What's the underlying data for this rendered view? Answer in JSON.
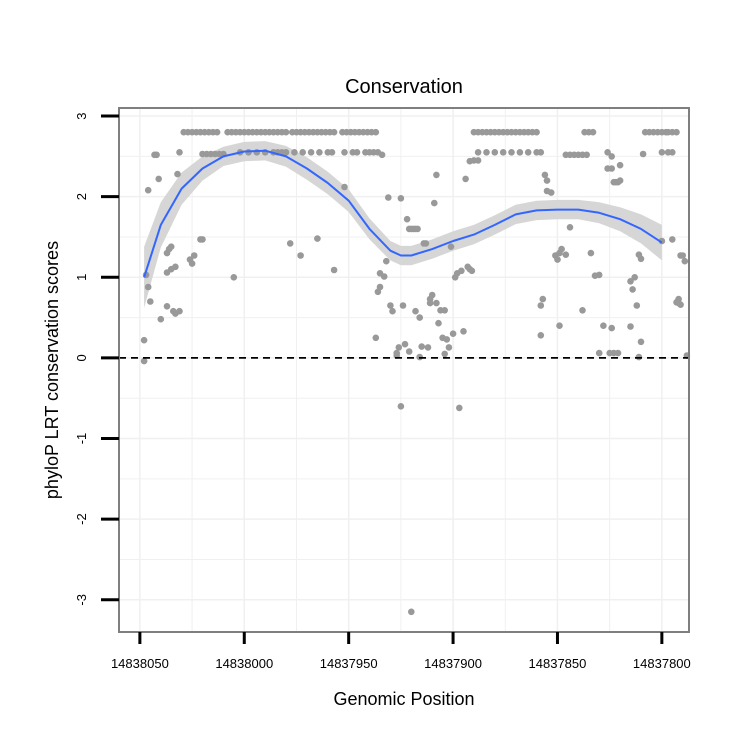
{
  "chart_data": {
    "type": "scatter",
    "title": "Conservation",
    "xlabel": "Genomic Position",
    "ylabel": "phyloP LRT conservation scores",
    "x_reversed": true,
    "xlim": [
      14838060,
      14837787
    ],
    "ylim": [
      -3.4,
      3.1
    ],
    "x_ticks": [
      14838050,
      14838000,
      14837950,
      14837900,
      14837850,
      14837800
    ],
    "x_tick_labels": [
      "14838050",
      "14838000",
      "14837950",
      "14837900",
      "14837850",
      "14837800"
    ],
    "y_ticks": [
      3,
      2,
      1,
      0,
      -1,
      -2,
      -3
    ],
    "y_tick_labels": [
      "3",
      "2",
      "1",
      "0",
      "-1",
      "-2",
      "-3"
    ],
    "grid": true,
    "reference_line": {
      "y": 0,
      "style": "dashed",
      "color": "#000000"
    },
    "colors": {
      "points": "#999999",
      "smooth": "#3366ff",
      "band": "#d4d4d4",
      "frame": "#7f7f7f",
      "grid": "#f0f0f0"
    },
    "points": [
      [
        14838047,
        1.03
      ],
      [
        14838046,
        0.88
      ],
      [
        14838045,
        0.7
      ],
      [
        14838048,
        0.22
      ],
      [
        14838048,
        -0.04
      ],
      [
        14838046,
        2.08
      ],
      [
        14838043,
        2.52
      ],
      [
        14838042,
        2.52
      ],
      [
        14838041,
        2.22
      ],
      [
        14838040,
        0.48
      ],
      [
        14838037,
        1.3
      ],
      [
        14838036,
        1.35
      ],
      [
        14838035,
        1.38
      ],
      [
        14838037,
        1.06
      ],
      [
        14838035,
        1.1
      ],
      [
        14838033,
        1.13
      ],
      [
        14838037,
        0.64
      ],
      [
        14838034,
        0.58
      ],
      [
        14838033,
        0.55
      ],
      [
        14838031,
        0.58
      ],
      [
        14838032,
        2.28
      ],
      [
        14838031,
        2.55
      ],
      [
        14838029,
        2.8
      ],
      [
        14838027,
        2.8
      ],
      [
        14838025,
        2.8
      ],
      [
        14838023,
        2.8
      ],
      [
        14838021,
        2.8
      ],
      [
        14838019,
        2.8
      ],
      [
        14838017,
        2.8
      ],
      [
        14838015,
        2.8
      ],
      [
        14838013,
        2.8
      ],
      [
        14838026,
        1.22
      ],
      [
        14838024,
        1.27
      ],
      [
        14838025,
        1.17
      ],
      [
        14838020,
        2.53
      ],
      [
        14838018,
        2.53
      ],
      [
        14838016,
        2.53
      ],
      [
        14838014,
        2.53
      ],
      [
        14838012,
        2.53
      ],
      [
        14838010,
        2.53
      ],
      [
        14838021,
        1.47
      ],
      [
        14838020,
        1.47
      ],
      [
        14838005,
        1.0
      ],
      [
        14838008,
        2.8
      ],
      [
        14838006,
        2.8
      ],
      [
        14838004,
        2.8
      ],
      [
        14838002,
        2.8
      ],
      [
        14838000,
        2.8
      ],
      [
        14837998,
        2.8
      ],
      [
        14837996,
        2.8
      ],
      [
        14837994,
        2.8
      ],
      [
        14837992,
        2.8
      ],
      [
        14837990,
        2.8
      ],
      [
        14837988,
        2.8
      ],
      [
        14837986,
        2.8
      ],
      [
        14837984,
        2.8
      ],
      [
        14837982,
        2.8
      ],
      [
        14837980,
        2.8
      ],
      [
        14838002,
        2.55
      ],
      [
        14837998,
        2.55
      ],
      [
        14837994,
        2.55
      ],
      [
        14837990,
        2.55
      ],
      [
        14837986,
        2.55
      ],
      [
        14837984,
        2.55
      ],
      [
        14837982,
        2.55
      ],
      [
        14837980,
        2.55
      ],
      [
        14837978,
        1.42
      ],
      [
        14837977,
        2.8
      ],
      [
        14837975,
        2.8
      ],
      [
        14837973,
        2.8
      ],
      [
        14837971,
        2.8
      ],
      [
        14837969,
        2.8
      ],
      [
        14837967,
        2.8
      ],
      [
        14837965,
        2.8
      ],
      [
        14837963,
        2.8
      ],
      [
        14837976,
        2.55
      ],
      [
        14837972,
        2.55
      ],
      [
        14837968,
        2.55
      ],
      [
        14837964,
        2.55
      ],
      [
        14837960,
        2.55
      ],
      [
        14837958,
        2.55
      ],
      [
        14837973,
        1.27
      ],
      [
        14837965,
        1.48
      ],
      [
        14837961,
        2.8
      ],
      [
        14837959,
        2.8
      ],
      [
        14837957,
        2.8
      ],
      [
        14837953,
        2.8
      ],
      [
        14837951,
        2.8
      ],
      [
        14837949,
        2.8
      ],
      [
        14837947,
        2.8
      ],
      [
        14837945,
        2.8
      ],
      [
        14837943,
        2.8
      ],
      [
        14837941,
        2.8
      ],
      [
        14837939,
        2.8
      ],
      [
        14837937,
        2.8
      ],
      [
        14837952,
        2.55
      ],
      [
        14837948,
        2.55
      ],
      [
        14837946,
        2.55
      ],
      [
        14837942,
        2.55
      ],
      [
        14837940,
        2.55
      ],
      [
        14837938,
        2.55
      ],
      [
        14837936,
        2.55
      ],
      [
        14837934,
        2.52
      ],
      [
        14837957,
        1.09
      ],
      [
        14837952,
        2.12
      ],
      [
        14837937,
        0.25
      ],
      [
        14837936,
        0.82
      ],
      [
        14837935,
        0.88
      ],
      [
        14837935,
        1.05
      ],
      [
        14837933,
        1.01
      ],
      [
        14837932,
        1.2
      ],
      [
        14837931,
        1.99
      ],
      [
        14837930,
        0.65
      ],
      [
        14837929,
        0.58
      ],
      [
        14837927,
        0.06
      ],
      [
        14837927,
        0.03
      ],
      [
        14837926,
        0.13
      ],
      [
        14837925,
        -0.6
      ],
      [
        14837925,
        1.98
      ],
      [
        14837924,
        0.65
      ],
      [
        14837923,
        0.17
      ],
      [
        14837922,
        1.72
      ],
      [
        14837921,
        1.6
      ],
      [
        14837920,
        1.6
      ],
      [
        14837919,
        1.6
      ],
      [
        14837918,
        1.6
      ],
      [
        14837917,
        1.6
      ],
      [
        14837921,
        0.08
      ],
      [
        14837920,
        -3.15
      ],
      [
        14837918,
        0.58
      ],
      [
        14837916,
        0.5
      ],
      [
        14837916,
        0.01
      ],
      [
        14837915,
        0.14
      ],
      [
        14837914,
        1.42
      ],
      [
        14837913,
        1.42
      ],
      [
        14837912,
        0.13
      ],
      [
        14837911,
        0.68
      ],
      [
        14837911,
        0.73
      ],
      [
        14837910,
        0.78
      ],
      [
        14837909,
        1.92
      ],
      [
        14837908,
        2.27
      ],
      [
        14837908,
        0.68
      ],
      [
        14837907,
        0.43
      ],
      [
        14837906,
        0.59
      ],
      [
        14837905,
        0.25
      ],
      [
        14837904,
        0.05
      ],
      [
        14837904,
        0.59
      ],
      [
        14837903,
        0.23
      ],
      [
        14837902,
        0.13
      ],
      [
        14837901,
        1.38
      ],
      [
        14837900,
        0.3
      ],
      [
        14837899,
        1.0
      ],
      [
        14837898,
        1.05
      ],
      [
        14837897,
        -0.62
      ],
      [
        14837896,
        1.08
      ],
      [
        14837895,
        0.33
      ],
      [
        14837894,
        2.22
      ],
      [
        14837893,
        1.13
      ],
      [
        14837892,
        1.1
      ],
      [
        14837891,
        1.08
      ],
      [
        14837892,
        2.44
      ],
      [
        14837890,
        2.45
      ],
      [
        14837888,
        2.45
      ],
      [
        14837890,
        2.8
      ],
      [
        14837888,
        2.8
      ],
      [
        14837886,
        2.8
      ],
      [
        14837884,
        2.8
      ],
      [
        14837882,
        2.8
      ],
      [
        14837880,
        2.8
      ],
      [
        14837878,
        2.8
      ],
      [
        14837876,
        2.8
      ],
      [
        14837874,
        2.8
      ],
      [
        14837872,
        2.8
      ],
      [
        14837870,
        2.8
      ],
      [
        14837868,
        2.8
      ],
      [
        14837866,
        2.8
      ],
      [
        14837864,
        2.8
      ],
      [
        14837862,
        2.8
      ],
      [
        14837860,
        2.8
      ],
      [
        14837888,
        2.55
      ],
      [
        14837884,
        2.55
      ],
      [
        14837880,
        2.55
      ],
      [
        14837876,
        2.55
      ],
      [
        14837872,
        2.55
      ],
      [
        14837868,
        2.55
      ],
      [
        14837864,
        2.55
      ],
      [
        14837860,
        2.55
      ],
      [
        14837858,
        2.55
      ],
      [
        14837858,
        0.65
      ],
      [
        14837857,
        0.73
      ],
      [
        14837858,
        0.28
      ],
      [
        14837856,
        2.27
      ],
      [
        14837855,
        2.2
      ],
      [
        14837855,
        2.07
      ],
      [
        14837853,
        2.05
      ],
      [
        14837851,
        1.27
      ],
      [
        14837850,
        1.22
      ],
      [
        14837849,
        1.3
      ],
      [
        14837848,
        1.35
      ],
      [
        14837846,
        1.28
      ],
      [
        14837846,
        2.52
      ],
      [
        14837844,
        2.52
      ],
      [
        14837842,
        2.52
      ],
      [
        14837840,
        2.52
      ],
      [
        14837838,
        2.52
      ],
      [
        14837836,
        2.52
      ],
      [
        14837837,
        2.8
      ],
      [
        14837835,
        2.8
      ],
      [
        14837833,
        2.8
      ],
      [
        14837849,
        0.4
      ],
      [
        14837844,
        1.62
      ],
      [
        14837838,
        0.59
      ],
      [
        14837834,
        1.3
      ],
      [
        14837832,
        1.02
      ],
      [
        14837830,
        1.03
      ],
      [
        14837828,
        0.4
      ],
      [
        14837826,
        2.55
      ],
      [
        14837824,
        2.5
      ],
      [
        14837826,
        2.35
      ],
      [
        14837824,
        2.35
      ],
      [
        14837823,
        2.18
      ],
      [
        14837822,
        2.18
      ],
      [
        14837821,
        2.18
      ],
      [
        14837820,
        2.2
      ],
      [
        14837820,
        2.39
      ],
      [
        14837825,
        0.06
      ],
      [
        14837823,
        0.06
      ],
      [
        14837821,
        0.06
      ],
      [
        14837824,
        0.37
      ],
      [
        14837830,
        0.06
      ],
      [
        14837815,
        0.39
      ],
      [
        14837814,
        0.85
      ],
      [
        14837815,
        0.95
      ],
      [
        14837813,
        1.0
      ],
      [
        14837812,
        0.65
      ],
      [
        14837811,
        1.28
      ],
      [
        14837810,
        1.23
      ],
      [
        14837810,
        0.2
      ],
      [
        14837811,
        0.01
      ],
      [
        14837809,
        2.53
      ],
      [
        14837808,
        2.8
      ],
      [
        14837806,
        2.8
      ],
      [
        14837804,
        2.8
      ],
      [
        14837802,
        2.8
      ],
      [
        14837800,
        2.8
      ],
      [
        14837798,
        2.8
      ],
      [
        14837797,
        2.8
      ],
      [
        14837795,
        2.8
      ],
      [
        14837793,
        2.8
      ],
      [
        14837800,
        2.55
      ],
      [
        14837797,
        2.55
      ],
      [
        14837795,
        2.55
      ],
      [
        14837800,
        1.45
      ],
      [
        14837795,
        1.47
      ],
      [
        14837792,
        0.73
      ],
      [
        14837792,
        0.68
      ],
      [
        14837791,
        0.66
      ],
      [
        14837793,
        0.69
      ],
      [
        14837791,
        1.27
      ],
      [
        14837790,
        1.27
      ],
      [
        14837789,
        1.2
      ],
      [
        14837788,
        0.03
      ]
    ],
    "smooth": [
      [
        14838048,
        1.0
      ],
      [
        14838040,
        1.65
      ],
      [
        14838030,
        2.1
      ],
      [
        14838020,
        2.35
      ],
      [
        14838010,
        2.5
      ],
      [
        14838000,
        2.56
      ],
      [
        14837990,
        2.57
      ],
      [
        14837980,
        2.5
      ],
      [
        14837970,
        2.35
      ],
      [
        14837960,
        2.17
      ],
      [
        14837950,
        1.95
      ],
      [
        14837940,
        1.6
      ],
      [
        14837930,
        1.33
      ],
      [
        14837925,
        1.27
      ],
      [
        14837920,
        1.27
      ],
      [
        14837910,
        1.35
      ],
      [
        14837900,
        1.45
      ],
      [
        14837890,
        1.53
      ],
      [
        14837880,
        1.65
      ],
      [
        14837870,
        1.78
      ],
      [
        14837860,
        1.83
      ],
      [
        14837850,
        1.84
      ],
      [
        14837840,
        1.84
      ],
      [
        14837830,
        1.8
      ],
      [
        14837820,
        1.72
      ],
      [
        14837810,
        1.6
      ],
      [
        14837800,
        1.43
      ]
    ],
    "band_halfwidth": [
      0.38,
      0.28,
      0.2,
      0.15,
      0.12,
      0.12,
      0.12,
      0.13,
      0.14,
      0.14,
      0.14,
      0.13,
      0.12,
      0.12,
      0.12,
      0.12,
      0.12,
      0.12,
      0.12,
      0.12,
      0.12,
      0.12,
      0.12,
      0.13,
      0.15,
      0.18,
      0.22
    ]
  }
}
